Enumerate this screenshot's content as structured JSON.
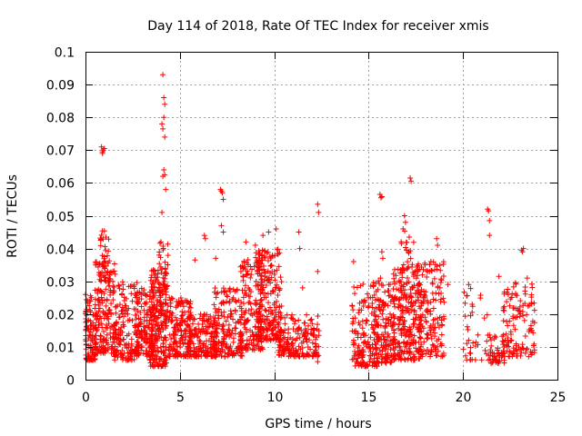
{
  "chart_data": {
    "type": "scatter",
    "title": "Day 114 of 2018, Rate Of TEC Index for receiver xmis",
    "xlabel": "GPS time / hours",
    "ylabel": "ROTI / TECUs",
    "xlim": [
      0,
      25
    ],
    "ylim": [
      0,
      0.1
    ],
    "x_ticks": [
      "0",
      "5",
      "10",
      "15",
      "20",
      "25"
    ],
    "y_ticks": [
      "0",
      "0.01",
      "0.02",
      "0.03",
      "0.04",
      "0.05",
      "0.06",
      "0.07",
      "0.08",
      "0.09",
      "0.1"
    ],
    "grid": true,
    "marker": "+",
    "color": "#ff0000",
    "clusters": [
      {
        "x": [
          0.0,
          0.6
        ],
        "y": [
          0.006,
          0.026
        ],
        "n": 110
      },
      {
        "x": [
          0.5,
          1.6
        ],
        "y": [
          0.008,
          0.036
        ],
        "n": 170
      },
      {
        "x": [
          0.7,
          1.3
        ],
        "y": [
          0.03,
          0.046
        ],
        "n": 35
      },
      {
        "x": [
          1.5,
          2.8
        ],
        "y": [
          0.006,
          0.03
        ],
        "n": 150
      },
      {
        "x": [
          2.6,
          3.6
        ],
        "y": [
          0.007,
          0.028
        ],
        "n": 150
      },
      {
        "x": [
          3.4,
          4.3
        ],
        "y": [
          0.004,
          0.034
        ],
        "n": 230
      },
      {
        "x": [
          3.9,
          4.4
        ],
        "y": [
          0.02,
          0.044
        ],
        "n": 40
      },
      {
        "x": [
          4.4,
          5.6
        ],
        "y": [
          0.007,
          0.025
        ],
        "n": 170
      },
      {
        "x": [
          5.5,
          7.0
        ],
        "y": [
          0.007,
          0.02
        ],
        "n": 170
      },
      {
        "x": [
          6.8,
          8.3
        ],
        "y": [
          0.007,
          0.028
        ],
        "n": 180
      },
      {
        "x": [
          8.2,
          9.4
        ],
        "y": [
          0.009,
          0.037
        ],
        "n": 170
      },
      {
        "x": [
          9.0,
          10.4
        ],
        "y": [
          0.012,
          0.04
        ],
        "n": 210
      },
      {
        "x": [
          10.2,
          12.4
        ],
        "y": [
          0.007,
          0.02
        ],
        "n": 180
      },
      {
        "x": [
          14.1,
          15.5
        ],
        "y": [
          0.004,
          0.03
        ],
        "n": 160
      },
      {
        "x": [
          15.3,
          16.4
        ],
        "y": [
          0.005,
          0.031
        ],
        "n": 150
      },
      {
        "x": [
          16.3,
          17.8
        ],
        "y": [
          0.006,
          0.035
        ],
        "n": 240
      },
      {
        "x": [
          16.7,
          17.4
        ],
        "y": [
          0.02,
          0.046
        ],
        "n": 40
      },
      {
        "x": [
          17.6,
          19.0
        ],
        "y": [
          0.007,
          0.036
        ],
        "n": 150
      },
      {
        "x": [
          20.0,
          21.6
        ],
        "y": [
          0.006,
          0.028
        ],
        "n": 40
      },
      {
        "x": [
          21.4,
          22.2
        ],
        "y": [
          0.005,
          0.014
        ],
        "n": 45
      },
      {
        "x": [
          22.1,
          23.8
        ],
        "y": [
          0.007,
          0.03
        ],
        "n": 120
      }
    ],
    "outliers": [
      {
        "x": 0.85,
        "y": 0.071
      },
      {
        "x": 0.9,
        "y": 0.069
      },
      {
        "x": 0.95,
        "y": 0.07
      },
      {
        "x": 0.9,
        "y": 0.0695
      },
      {
        "x": 1.0,
        "y": 0.0705
      },
      {
        "x": 4.1,
        "y": 0.093
      },
      {
        "x": 4.15,
        "y": 0.086
      },
      {
        "x": 4.2,
        "y": 0.084
      },
      {
        "x": 4.05,
        "y": 0.078
      },
      {
        "x": 4.1,
        "y": 0.0765
      },
      {
        "x": 4.15,
        "y": 0.08
      },
      {
        "x": 4.2,
        "y": 0.074
      },
      {
        "x": 4.15,
        "y": 0.064
      },
      {
        "x": 4.1,
        "y": 0.062
      },
      {
        "x": 4.2,
        "y": 0.0625
      },
      {
        "x": 4.25,
        "y": 0.058
      },
      {
        "x": 4.05,
        "y": 0.051
      },
      {
        "x": 4.0,
        "y": 0.042
      },
      {
        "x": 3.9,
        "y": 0.038
      },
      {
        "x": 7.15,
        "y": 0.058
      },
      {
        "x": 7.2,
        "y": 0.0575
      },
      {
        "x": 7.25,
        "y": 0.057
      },
      {
        "x": 7.3,
        "y": 0.055
      },
      {
        "x": 7.2,
        "y": 0.047
      },
      {
        "x": 7.3,
        "y": 0.045
      },
      {
        "x": 6.3,
        "y": 0.044
      },
      {
        "x": 6.35,
        "y": 0.043
      },
      {
        "x": 5.8,
        "y": 0.0365
      },
      {
        "x": 6.9,
        "y": 0.037
      },
      {
        "x": 9.4,
        "y": 0.044
      },
      {
        "x": 9.7,
        "y": 0.045
      },
      {
        "x": 10.1,
        "y": 0.046
      },
      {
        "x": 9.0,
        "y": 0.041
      },
      {
        "x": 8.5,
        "y": 0.042
      },
      {
        "x": 11.3,
        "y": 0.045
      },
      {
        "x": 11.35,
        "y": 0.04
      },
      {
        "x": 12.3,
        "y": 0.0535
      },
      {
        "x": 12.35,
        "y": 0.051
      },
      {
        "x": 12.3,
        "y": 0.033
      },
      {
        "x": 12.3,
        "y": 0.0055
      },
      {
        "x": 11.5,
        "y": 0.028
      },
      {
        "x": 15.6,
        "y": 0.0565
      },
      {
        "x": 15.65,
        "y": 0.0555
      },
      {
        "x": 15.7,
        "y": 0.0558
      },
      {
        "x": 17.2,
        "y": 0.0615
      },
      {
        "x": 17.25,
        "y": 0.0605
      },
      {
        "x": 16.9,
        "y": 0.05
      },
      {
        "x": 16.95,
        "y": 0.048
      },
      {
        "x": 15.7,
        "y": 0.039
      },
      {
        "x": 15.75,
        "y": 0.037
      },
      {
        "x": 14.2,
        "y": 0.036
      },
      {
        "x": 18.6,
        "y": 0.043
      },
      {
        "x": 18.65,
        "y": 0.041
      },
      {
        "x": 18.3,
        "y": 0.036
      },
      {
        "x": 19.2,
        "y": 0.029
      },
      {
        "x": 20.3,
        "y": 0.029
      },
      {
        "x": 20.4,
        "y": 0.0195
      },
      {
        "x": 20.3,
        "y": 0.012
      },
      {
        "x": 20.4,
        "y": 0.008
      },
      {
        "x": 21.3,
        "y": 0.052
      },
      {
        "x": 21.35,
        "y": 0.0515
      },
      {
        "x": 21.4,
        "y": 0.0485
      },
      {
        "x": 21.4,
        "y": 0.044
      },
      {
        "x": 21.9,
        "y": 0.0315
      },
      {
        "x": 23.1,
        "y": 0.0395
      },
      {
        "x": 23.15,
        "y": 0.039
      },
      {
        "x": 23.2,
        "y": 0.04
      },
      {
        "x": 23.4,
        "y": 0.031
      },
      {
        "x": 23.6,
        "y": 0.0165
      },
      {
        "x": 23.65,
        "y": 0.015
      }
    ]
  }
}
